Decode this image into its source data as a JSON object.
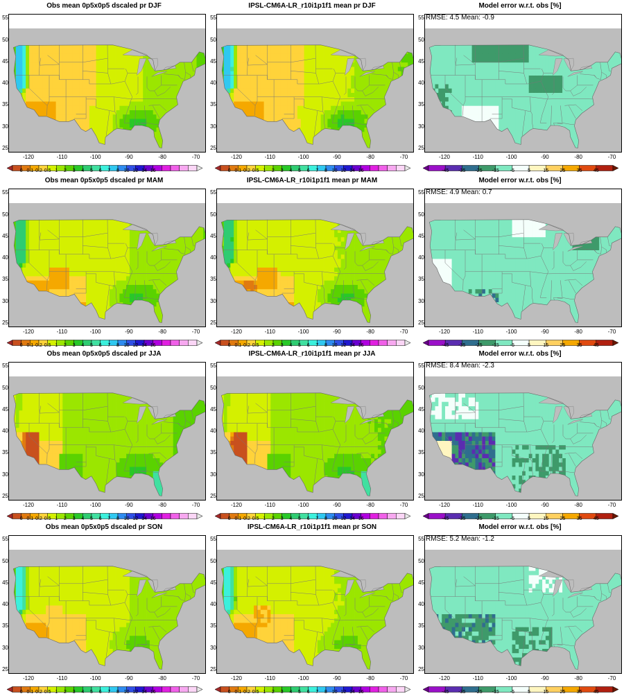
{
  "colorbars": {
    "precip": {
      "ticks": [
        "0",
        "0.1",
        "0.2",
        "0.5",
        "1",
        "2",
        "3",
        "4",
        "5",
        "6",
        "7",
        "8",
        "10",
        "12",
        "14",
        "16"
      ],
      "colors": [
        "#a52a2a",
        "#c8501e",
        "#e07a10",
        "#f5a800",
        "#ffd33a",
        "#d4f000",
        "#9be600",
        "#5ad200",
        "#28c828",
        "#2ecc71",
        "#40e0a0",
        "#3cf0dc",
        "#30c8f0",
        "#2f8cf0",
        "#3050e6",
        "#2018d0",
        "#6a00d0",
        "#b000e0",
        "#e020e0",
        "#f060e8",
        "#f7a8f0",
        "#fbd6f6",
        "#e8e8e8"
      ]
    },
    "error": {
      "ticks": [
        "-45",
        "-35",
        "-25",
        "-15",
        "-5",
        "5",
        "15",
        "25",
        "35",
        "45"
      ],
      "colors": [
        "#6a008a",
        "#9a10c8",
        "#5a2db0",
        "#2f6e8e",
        "#3e9a6a",
        "#7fe8c0",
        "#f4fffb",
        "#fff6c0",
        "#ffd060",
        "#f5a800",
        "#e04a10",
        "#b02010",
        "#6a1800"
      ]
    }
  },
  "x_ticks": [
    "-120",
    "-110",
    "-100",
    "-90",
    "-80",
    "-70"
  ],
  "y_ticks": [
    "55",
    "50",
    "45",
    "40",
    "35",
    "30",
    "25"
  ],
  "rows": [
    {
      "season": "DJF",
      "obs_title": "Obs mean 0p5x0p5 dscaled pr DJF",
      "model_title": "IPSL-CM6A-LR_r10i1p1f1 mean pr DJF",
      "err_title": "Model error w.r.t. obs [%]",
      "stats": "RMSE: 4.5  Mean: -0.9"
    },
    {
      "season": "MAM",
      "obs_title": "Obs mean 0p5x0p5 dscaled pr MAM",
      "model_title": "IPSL-CM6A-LR_r10i1p1f1 mean pr MAM",
      "err_title": "Model error w.r.t. obs [%]",
      "stats": "RMSE: 4.9  Mean: 0.7"
    },
    {
      "season": "JJA",
      "obs_title": "Obs mean 0p5x0p5 dscaled pr JJA",
      "model_title": "IPSL-CM6A-LR_r10i1p1f1 mean pr JJA",
      "err_title": "Model error w.r.t. obs [%]",
      "stats": "RMSE: 8.4  Mean: -2.3"
    },
    {
      "season": "SON",
      "obs_title": "Obs mean 0p5x0p5 dscaled pr SON",
      "model_title": "IPSL-CM6A-LR_r10i1p1f1 mean pr SON",
      "err_title": "Model error w.r.t. obs [%]",
      "stats": "RMSE: 5.2  Mean: -1.2"
    }
  ]
}
